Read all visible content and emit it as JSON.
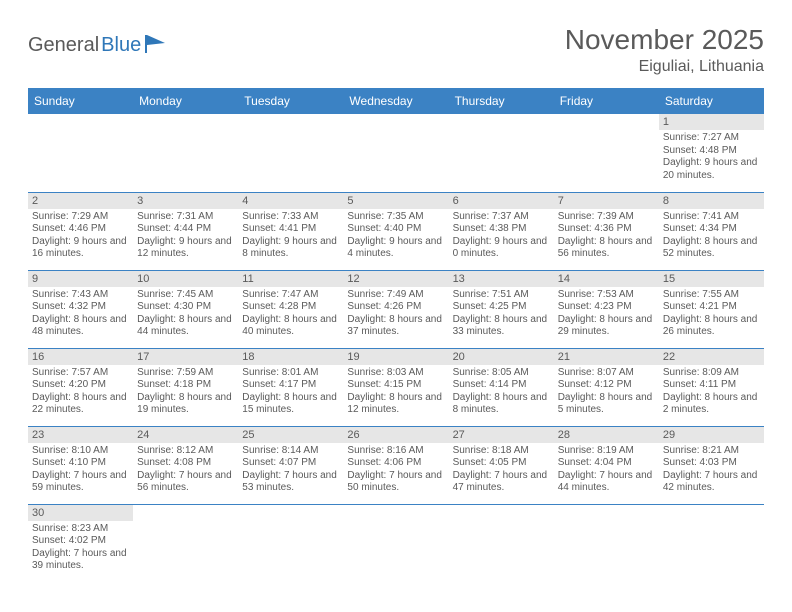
{
  "brand": {
    "name_a": "General",
    "name_b": "Blue"
  },
  "title": "November 2025",
  "location": "Eiguliai, Lithuania",
  "colors": {
    "header_bg": "#3b82c4",
    "header_text": "#ffffff",
    "daynum_bg": "#e6e6e6",
    "text": "#5a5a5a",
    "rule": "#3b82c4",
    "page_bg": "#ffffff"
  },
  "day_names": [
    "Sunday",
    "Monday",
    "Tuesday",
    "Wednesday",
    "Thursday",
    "Friday",
    "Saturday"
  ],
  "weeks": [
    [
      null,
      null,
      null,
      null,
      null,
      null,
      {
        "n": "1",
        "sunrise": "Sunrise: 7:27 AM",
        "sunset": "Sunset: 4:48 PM",
        "daylight": "Daylight: 9 hours and 20 minutes."
      }
    ],
    [
      {
        "n": "2",
        "sunrise": "Sunrise: 7:29 AM",
        "sunset": "Sunset: 4:46 PM",
        "daylight": "Daylight: 9 hours and 16 minutes."
      },
      {
        "n": "3",
        "sunrise": "Sunrise: 7:31 AM",
        "sunset": "Sunset: 4:44 PM",
        "daylight": "Daylight: 9 hours and 12 minutes."
      },
      {
        "n": "4",
        "sunrise": "Sunrise: 7:33 AM",
        "sunset": "Sunset: 4:41 PM",
        "daylight": "Daylight: 9 hours and 8 minutes."
      },
      {
        "n": "5",
        "sunrise": "Sunrise: 7:35 AM",
        "sunset": "Sunset: 4:40 PM",
        "daylight": "Daylight: 9 hours and 4 minutes."
      },
      {
        "n": "6",
        "sunrise": "Sunrise: 7:37 AM",
        "sunset": "Sunset: 4:38 PM",
        "daylight": "Daylight: 9 hours and 0 minutes."
      },
      {
        "n": "7",
        "sunrise": "Sunrise: 7:39 AM",
        "sunset": "Sunset: 4:36 PM",
        "daylight": "Daylight: 8 hours and 56 minutes."
      },
      {
        "n": "8",
        "sunrise": "Sunrise: 7:41 AM",
        "sunset": "Sunset: 4:34 PM",
        "daylight": "Daylight: 8 hours and 52 minutes."
      }
    ],
    [
      {
        "n": "9",
        "sunrise": "Sunrise: 7:43 AM",
        "sunset": "Sunset: 4:32 PM",
        "daylight": "Daylight: 8 hours and 48 minutes."
      },
      {
        "n": "10",
        "sunrise": "Sunrise: 7:45 AM",
        "sunset": "Sunset: 4:30 PM",
        "daylight": "Daylight: 8 hours and 44 minutes."
      },
      {
        "n": "11",
        "sunrise": "Sunrise: 7:47 AM",
        "sunset": "Sunset: 4:28 PM",
        "daylight": "Daylight: 8 hours and 40 minutes."
      },
      {
        "n": "12",
        "sunrise": "Sunrise: 7:49 AM",
        "sunset": "Sunset: 4:26 PM",
        "daylight": "Daylight: 8 hours and 37 minutes."
      },
      {
        "n": "13",
        "sunrise": "Sunrise: 7:51 AM",
        "sunset": "Sunset: 4:25 PM",
        "daylight": "Daylight: 8 hours and 33 minutes."
      },
      {
        "n": "14",
        "sunrise": "Sunrise: 7:53 AM",
        "sunset": "Sunset: 4:23 PM",
        "daylight": "Daylight: 8 hours and 29 minutes."
      },
      {
        "n": "15",
        "sunrise": "Sunrise: 7:55 AM",
        "sunset": "Sunset: 4:21 PM",
        "daylight": "Daylight: 8 hours and 26 minutes."
      }
    ],
    [
      {
        "n": "16",
        "sunrise": "Sunrise: 7:57 AM",
        "sunset": "Sunset: 4:20 PM",
        "daylight": "Daylight: 8 hours and 22 minutes."
      },
      {
        "n": "17",
        "sunrise": "Sunrise: 7:59 AM",
        "sunset": "Sunset: 4:18 PM",
        "daylight": "Daylight: 8 hours and 19 minutes."
      },
      {
        "n": "18",
        "sunrise": "Sunrise: 8:01 AM",
        "sunset": "Sunset: 4:17 PM",
        "daylight": "Daylight: 8 hours and 15 minutes."
      },
      {
        "n": "19",
        "sunrise": "Sunrise: 8:03 AM",
        "sunset": "Sunset: 4:15 PM",
        "daylight": "Daylight: 8 hours and 12 minutes."
      },
      {
        "n": "20",
        "sunrise": "Sunrise: 8:05 AM",
        "sunset": "Sunset: 4:14 PM",
        "daylight": "Daylight: 8 hours and 8 minutes."
      },
      {
        "n": "21",
        "sunrise": "Sunrise: 8:07 AM",
        "sunset": "Sunset: 4:12 PM",
        "daylight": "Daylight: 8 hours and 5 minutes."
      },
      {
        "n": "22",
        "sunrise": "Sunrise: 8:09 AM",
        "sunset": "Sunset: 4:11 PM",
        "daylight": "Daylight: 8 hours and 2 minutes."
      }
    ],
    [
      {
        "n": "23",
        "sunrise": "Sunrise: 8:10 AM",
        "sunset": "Sunset: 4:10 PM",
        "daylight": "Daylight: 7 hours and 59 minutes."
      },
      {
        "n": "24",
        "sunrise": "Sunrise: 8:12 AM",
        "sunset": "Sunset: 4:08 PM",
        "daylight": "Daylight: 7 hours and 56 minutes."
      },
      {
        "n": "25",
        "sunrise": "Sunrise: 8:14 AM",
        "sunset": "Sunset: 4:07 PM",
        "daylight": "Daylight: 7 hours and 53 minutes."
      },
      {
        "n": "26",
        "sunrise": "Sunrise: 8:16 AM",
        "sunset": "Sunset: 4:06 PM",
        "daylight": "Daylight: 7 hours and 50 minutes."
      },
      {
        "n": "27",
        "sunrise": "Sunrise: 8:18 AM",
        "sunset": "Sunset: 4:05 PM",
        "daylight": "Daylight: 7 hours and 47 minutes."
      },
      {
        "n": "28",
        "sunrise": "Sunrise: 8:19 AM",
        "sunset": "Sunset: 4:04 PM",
        "daylight": "Daylight: 7 hours and 44 minutes."
      },
      {
        "n": "29",
        "sunrise": "Sunrise: 8:21 AM",
        "sunset": "Sunset: 4:03 PM",
        "daylight": "Daylight: 7 hours and 42 minutes."
      }
    ],
    [
      {
        "n": "30",
        "sunrise": "Sunrise: 8:23 AM",
        "sunset": "Sunset: 4:02 PM",
        "daylight": "Daylight: 7 hours and 39 minutes."
      },
      null,
      null,
      null,
      null,
      null,
      null
    ]
  ]
}
